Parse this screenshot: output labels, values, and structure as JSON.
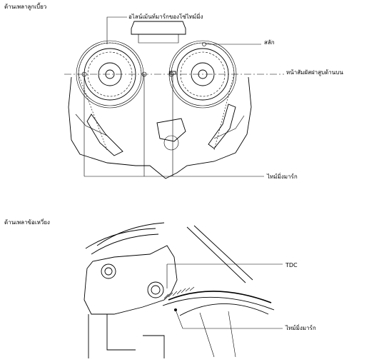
{
  "figure_top": {
    "title": "ด้านเพลาลูกเบี้ยว",
    "labels": {
      "alignment_mark": "อไลน์เม้นท์มาร์กของโซ่ไทม์มิ่ง",
      "pin": "สลัก",
      "head_face": "หน้าสัมผัสฝาสูบด้านบน",
      "timing_mark": "ไทม์มิ่งมาร์ก"
    }
  },
  "figure_bottom": {
    "title": "ด้านเพลาข้อเหวี่ยง",
    "labels": {
      "tdc": "TDC",
      "timing_mark": "ไทม์มิ่งมาร์ก"
    }
  }
}
